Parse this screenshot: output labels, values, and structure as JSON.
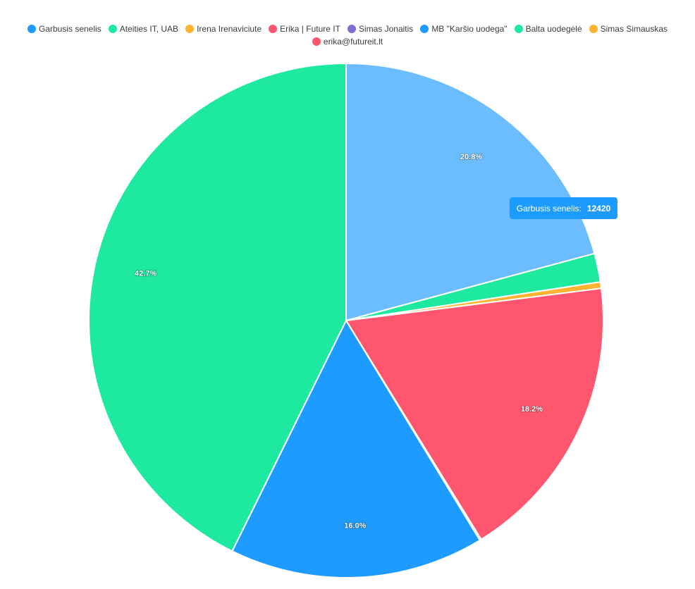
{
  "chart_data": {
    "type": "pie",
    "categories": [
      "Garbusis senelis",
      "Ateities IT, UAB",
      "Irena Irenaviciute",
      "Erika | Future IT",
      "Simas Jonaitis",
      "MB \"Karšio uodega\"",
      "Balta uodegėlė",
      "Simas Simauskas",
      "erika@futureit.lt"
    ],
    "values": [
      20.8,
      1.8,
      0.4,
      18.2,
      0.1,
      16.0,
      42.7,
      0,
      0
    ],
    "value_labels": [
      "20.8%",
      null,
      null,
      "18.2%",
      null,
      "16.0%",
      "42.7%",
      null,
      null
    ],
    "colors": [
      "#1e9bff",
      "#1de9a0",
      "#feb42f",
      "#ff5670",
      "#7b6fd3",
      "#1e9bff",
      "#1de9a0",
      "#feb42f",
      "#ff5670"
    ],
    "tooltip": {
      "label": "Garbusis senelis:",
      "value": 12420
    }
  }
}
